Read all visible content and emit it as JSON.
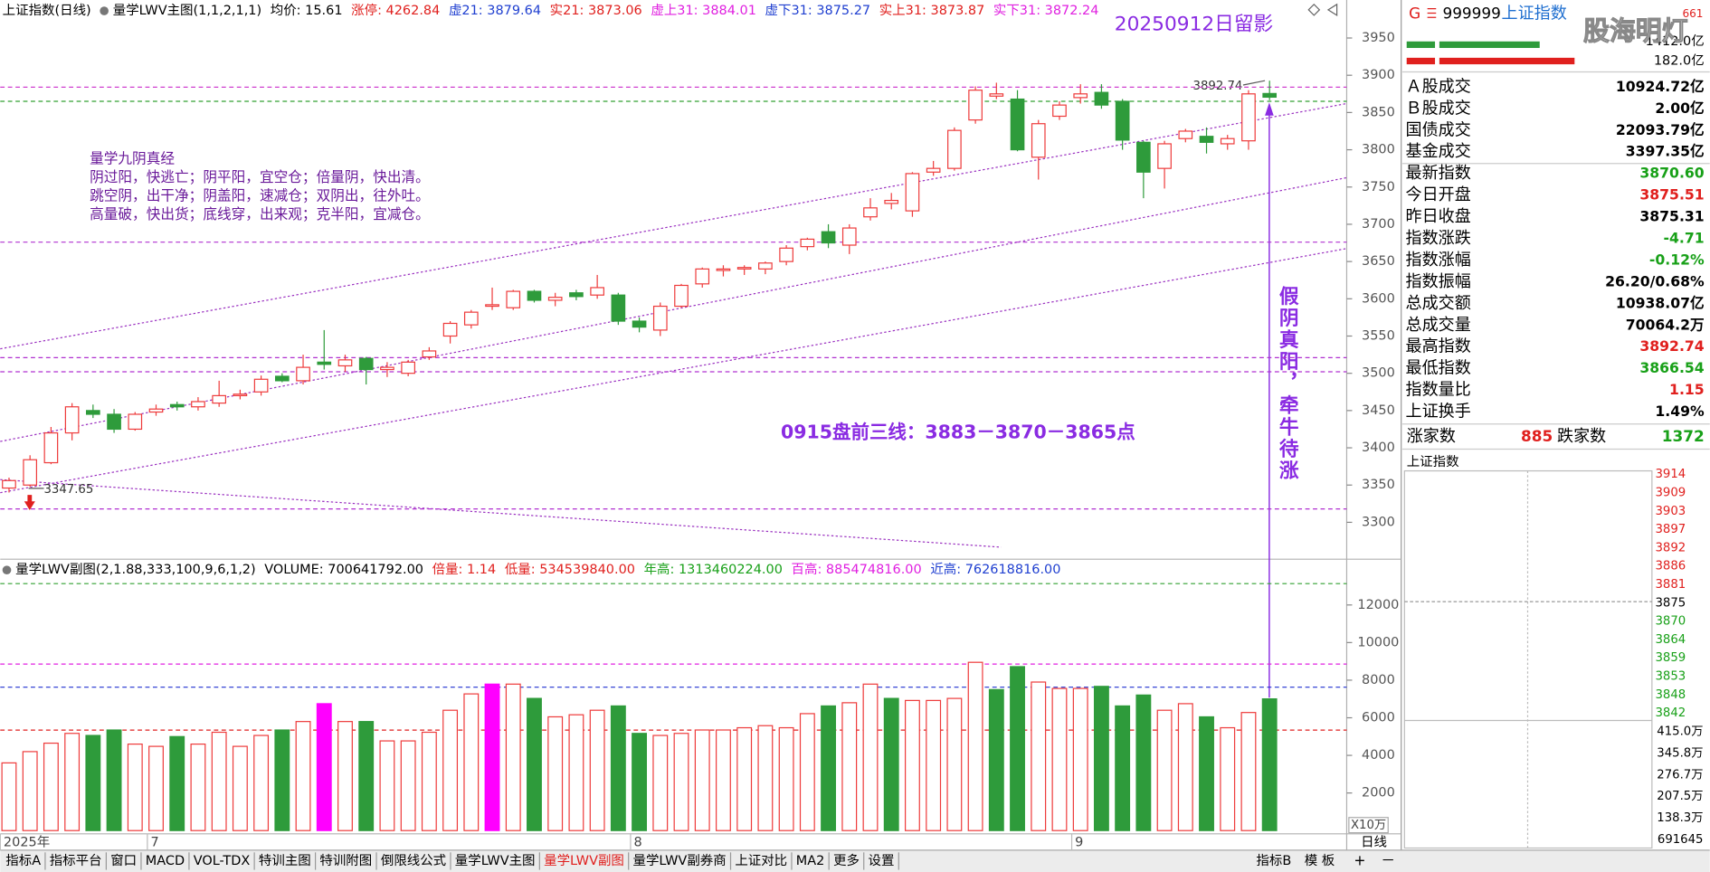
{
  "header": {
    "title": "上证指数(日线)",
    "indicator": "量学LWV主图(1,1,2,1,1)",
    "items": [
      {
        "text": "均价: 15.61",
        "color": "#000000"
      },
      {
        "text": "涨停: 4262.84",
        "color": "#e0201e"
      },
      {
        "text": "虚21: 3879.64",
        "color": "#1f3fd0"
      },
      {
        "text": "实21: 3873.06",
        "color": "#e0201e"
      },
      {
        "text": "虚上31: 3884.01",
        "color": "#e020e0"
      },
      {
        "text": "虚下31: 3875.27",
        "color": "#1f3fd0"
      },
      {
        "text": "实上31: 3873.87",
        "color": "#e0201e"
      },
      {
        "text": "实下31: 3872.24",
        "color": "#e020e0"
      }
    ]
  },
  "annotations": {
    "stamp": "20250912日留影",
    "rules_title": "量学九阴真经",
    "rules": [
      "阴过阳，快逃亡；阴平阳，宜空仓；倍量阴，快出清。",
      "跳空阴，出干净；阴盖阳，速减仓；双阴出，往外吐。",
      "高量破，快出货；底线穿，出来观；克半阳，宜减仓。"
    ],
    "plan": "0915盘前三线：3883－3870－3865点",
    "vertical_note": "假阴真阳，牵牛待涨",
    "high_mark": "3892.74",
    "low_mark": "3347.65"
  },
  "volume_header": {
    "title": "量学LWV副图(2,1.88,333,100,9,6,1,2)",
    "items": [
      {
        "text": "VOLUME: 700641792.00",
        "color": "#000000"
      },
      {
        "text": "倍量: 1.14",
        "color": "#e0201e"
      },
      {
        "text": "低量: 534539840.00",
        "color": "#e0201e"
      },
      {
        "text": "年高: 1313460224.00",
        "color": "#18a018"
      },
      {
        "text": "百高: 885474816.00",
        "color": "#e020e0"
      },
      {
        "text": "近高: 762618816.00",
        "color": "#1f3fd0"
      }
    ],
    "unit": "X10万"
  },
  "chart_data": [
    {
      "type": "candlestick",
      "categories": [
        "2025年",
        null,
        null,
        null,
        null,
        null,
        null,
        "7",
        null,
        null,
        null,
        null,
        null,
        null,
        null,
        null,
        null,
        null,
        null,
        null,
        null,
        null,
        null,
        null,
        null,
        null,
        null,
        null,
        null,
        null,
        "8",
        null,
        null,
        null,
        null,
        null,
        null,
        null,
        null,
        null,
        null,
        null,
        null,
        null,
        null,
        null,
        null,
        null,
        null,
        null,
        null,
        "9",
        null,
        null,
        null,
        null,
        null,
        null,
        null,
        null,
        null
      ],
      "open": [
        3346,
        3350,
        3380,
        3420,
        3450,
        3445,
        3425,
        3448,
        3458,
        3455,
        3460,
        3470,
        3475,
        3496,
        3490,
        3515,
        3510,
        3520,
        3505,
        3500,
        3522,
        3550,
        3565,
        3590,
        3588,
        3610,
        3598,
        3608,
        3605,
        3605,
        3570,
        3558,
        3590,
        3620,
        3638,
        3640,
        3640,
        3650,
        3670,
        3690,
        3672,
        3710,
        3728,
        3718,
        3770,
        3775,
        3840,
        3872,
        3868,
        3790,
        3845,
        3870,
        3877,
        3865,
        3810,
        3775,
        3815,
        3818,
        3808,
        3812,
        3875.51
      ],
      "high": [
        3360,
        3390,
        3428,
        3460,
        3458,
        3452,
        3448,
        3458,
        3462,
        3468,
        3490,
        3478,
        3497,
        3500,
        3525,
        3558,
        3525,
        3522,
        3515,
        3518,
        3535,
        3570,
        3585,
        3615,
        3612,
        3612,
        3608,
        3612,
        3632,
        3608,
        3575,
        3595,
        3620,
        3642,
        3645,
        3645,
        3650,
        3672,
        3682,
        3700,
        3700,
        3735,
        3742,
        3770,
        3785,
        3830,
        3885,
        3890,
        3880,
        3840,
        3865,
        3888,
        3888,
        3868,
        3812,
        3812,
        3828,
        3830,
        3820,
        3880,
        3892.74
      ],
      "low": [
        3340,
        3347.65,
        3378,
        3410,
        3440,
        3420,
        3423,
        3443,
        3450,
        3450,
        3455,
        3465,
        3470,
        3488,
        3485,
        3505,
        3502,
        3485,
        3495,
        3496,
        3518,
        3540,
        3560,
        3585,
        3585,
        3595,
        3590,
        3598,
        3600,
        3565,
        3555,
        3550,
        3588,
        3615,
        3630,
        3632,
        3633,
        3645,
        3665,
        3668,
        3660,
        3705,
        3720,
        3710,
        3765,
        3772,
        3835,
        3868,
        3798,
        3760,
        3840,
        3862,
        3855,
        3800,
        3735,
        3748,
        3810,
        3795,
        3800,
        3800,
        3866.54
      ],
      "close": [
        3356,
        3384,
        3420,
        3455,
        3445,
        3425,
        3445,
        3452,
        3455,
        3462,
        3470,
        3472,
        3492,
        3490,
        3508,
        3512,
        3518,
        3505,
        3508,
        3515,
        3530,
        3567,
        3582,
        3592,
        3610,
        3598,
        3602,
        3603,
        3615,
        3570,
        3562,
        3590,
        3618,
        3640,
        3640,
        3642,
        3648,
        3668,
        3680,
        3675,
        3695,
        3722,
        3732,
        3768,
        3775,
        3826,
        3880,
        3875,
        3800,
        3835,
        3860,
        3875,
        3860,
        3813,
        3770,
        3808,
        3825,
        3810,
        3815,
        3875,
        3870.6
      ],
      "up_color": "#ee3b3b",
      "down_color": "#2e9b3b",
      "ylim": [
        3252,
        4001
      ],
      "yticks": [
        3950,
        3900,
        3850,
        3800,
        3750,
        3700,
        3650,
        3600,
        3550,
        3500,
        3450,
        3400,
        3350,
        3300
      ],
      "hlines": [
        {
          "value": 3884,
          "color": "#d040d0"
        },
        {
          "value": 3865,
          "color": "#30a030"
        },
        {
          "value": 3676,
          "color": "#b030d0"
        },
        {
          "value": 3521,
          "color": "#b030d0"
        },
        {
          "value": 3502,
          "color": "#b030d0"
        },
        {
          "value": 3318,
          "color": "#b030d0"
        }
      ]
    },
    {
      "type": "bar",
      "values": [
        3600,
        4200,
        4650,
        5170,
        5060,
        5350,
        4600,
        4480,
        5000,
        4600,
        5230,
        4480,
        5060,
        5350,
        5800,
        6750,
        5800,
        5800,
        4770,
        4770,
        5230,
        6400,
        7270,
        7790,
        7790,
        7030,
        6050,
        6160,
        6400,
        6630,
        5170,
        5060,
        5170,
        5350,
        5350,
        5470,
        5580,
        5470,
        6220,
        6630,
        6800,
        7790,
        7030,
        6920,
        6920,
        7030,
        8950,
        7500,
        8720,
        7900,
        7560,
        7560,
        7670,
        6630,
        7210,
        6400,
        6750,
        6050,
        5470,
        6280,
        7006
      ],
      "colors": [
        "#ee3b3b",
        "#ee3b3b",
        "#ee3b3b",
        "#ee3b3b",
        "#2e9b3b",
        "#2e9b3b",
        "#ee3b3b",
        "#ee3b3b",
        "#2e9b3b",
        "#ee3b3b",
        "#ee3b3b",
        "#ee3b3b",
        "#ee3b3b",
        "#2e9b3b",
        "#ee3b3b",
        "#ff00ff",
        "#ee3b3b",
        "#2e9b3b",
        "#ee3b3b",
        "#ee3b3b",
        "#ee3b3b",
        "#ee3b3b",
        "#ee3b3b",
        "#ff00ff",
        "#ee3b3b",
        "#2e9b3b",
        "#ee3b3b",
        "#ee3b3b",
        "#ee3b3b",
        "#2e9b3b",
        "#2e9b3b",
        "#ee3b3b",
        "#ee3b3b",
        "#ee3b3b",
        "#ee3b3b",
        "#ee3b3b",
        "#ee3b3b",
        "#ee3b3b",
        "#ee3b3b",
        "#2e9b3b",
        "#ee3b3b",
        "#ee3b3b",
        "#2e9b3b",
        "#ee3b3b",
        "#ee3b3b",
        "#ee3b3b",
        "#ee3b3b",
        "#2e9b3b",
        "#2e9b3b",
        "#ee3b3b",
        "#ee3b3b",
        "#ee3b3b",
        "#2e9b3b",
        "#2e9b3b",
        "#2e9b3b",
        "#ee3b3b",
        "#ee3b3b",
        "#2e9b3b",
        "#ee3b3b",
        "#ee3b3b",
        "#2e9b3b"
      ],
      "ylim": [
        0,
        14320
      ],
      "yticks": [
        12000,
        10000,
        8000,
        6000,
        4000,
        2000
      ],
      "hlines": [
        {
          "value": 13135,
          "color": "#30a030"
        },
        {
          "value": 8855,
          "color": "#e020e0"
        },
        {
          "value": 7626,
          "color": "#2030d0"
        },
        {
          "value": 5345,
          "color": "#e02020"
        }
      ]
    }
  ],
  "side_panel": {
    "flag": "G",
    "code": "999999",
    "name": "上证指数",
    "badge": "661",
    "watermark": "股海明灯",
    "buy_amount": "1412.0亿",
    "sell_amount": "182.0亿",
    "rows": [
      {
        "label": "Ａ股成交",
        "value": "10924.72亿",
        "color": "#000000"
      },
      {
        "label": "Ｂ股成交",
        "value": "2.00亿",
        "color": "#000000"
      },
      {
        "label": "国债成交",
        "value": "22093.79亿",
        "color": "#000000"
      },
      {
        "label": "基金成交",
        "value": "3397.35亿",
        "color": "#000000"
      },
      {
        "label": "最新指数",
        "value": "3870.60",
        "color": "#18a018"
      },
      {
        "label": "今日开盘",
        "value": "3875.51",
        "color": "#e0201e"
      },
      {
        "label": "昨日收盘",
        "value": "3875.31",
        "color": "#000000"
      },
      {
        "label": "指数涨跌",
        "value": "-4.71",
        "color": "#18a018"
      },
      {
        "label": "指数涨幅",
        "value": "-0.12%",
        "color": "#18a018"
      },
      {
        "label": "指数振幅",
        "value": "26.20/0.68%",
        "color": "#000000"
      },
      {
        "label": "总成交额",
        "value": "10938.07亿",
        "color": "#000000"
      },
      {
        "label": "总成交量",
        "value": "70064.2万",
        "color": "#000000"
      },
      {
        "label": "最高指数",
        "value": "3892.74",
        "color": "#e0201e"
      },
      {
        "label": "最低指数",
        "value": "3866.54",
        "color": "#18a018"
      },
      {
        "label": "指数量比",
        "value": "1.15",
        "color": "#e0201e"
      },
      {
        "label": "上证换手",
        "value": "1.49%",
        "color": "#000000"
      }
    ],
    "breadth": {
      "up_label": "涨家数",
      "up": "885",
      "down_label": "跌家数",
      "down": "1372"
    },
    "mini_title": "上证指数",
    "mini_price_labels": [
      {
        "text": "3914",
        "color": "#e0201e"
      },
      {
        "text": "3909",
        "color": "#e0201e"
      },
      {
        "text": "3903",
        "color": "#e0201e"
      },
      {
        "text": "3897",
        "color": "#e0201e"
      },
      {
        "text": "3892",
        "color": "#e0201e"
      },
      {
        "text": "3886",
        "color": "#e0201e"
      },
      {
        "text": "3881",
        "color": "#e0201e"
      },
      {
        "text": "3875",
        "color": "#000000"
      },
      {
        "text": "3870",
        "color": "#18a018"
      },
      {
        "text": "3864",
        "color": "#18a018"
      },
      {
        "text": "3859",
        "color": "#18a018"
      },
      {
        "text": "3853",
        "color": "#18a018"
      },
      {
        "text": "3848",
        "color": "#18a018"
      },
      {
        "text": "3842",
        "color": "#18a018"
      }
    ],
    "mini_volume_labels": [
      "415.0万",
      "345.8万",
      "276.7万",
      "207.5万",
      "138.3万",
      "691645"
    ]
  },
  "toolbar": {
    "tabs": [
      {
        "label": "指标A"
      },
      {
        "label": "指标平台"
      },
      {
        "label": "窗口"
      },
      {
        "label": "MACD"
      },
      {
        "label": "VOL-TDX"
      },
      {
        "label": "特训主图"
      },
      {
        "label": "特训附图"
      },
      {
        "label": "倒限线公式"
      },
      {
        "label": "量学LWV主图"
      },
      {
        "label": "量学LWV副图",
        "active": true
      },
      {
        "label": "量学LWV副券商"
      },
      {
        "label": "上证对比"
      },
      {
        "label": "MA2"
      },
      {
        "label": "更多"
      },
      {
        "label": "设置"
      }
    ],
    "right": [
      "指标B",
      "模 板"
    ],
    "period": "日线",
    "zoom": [
      "+",
      "－"
    ]
  }
}
